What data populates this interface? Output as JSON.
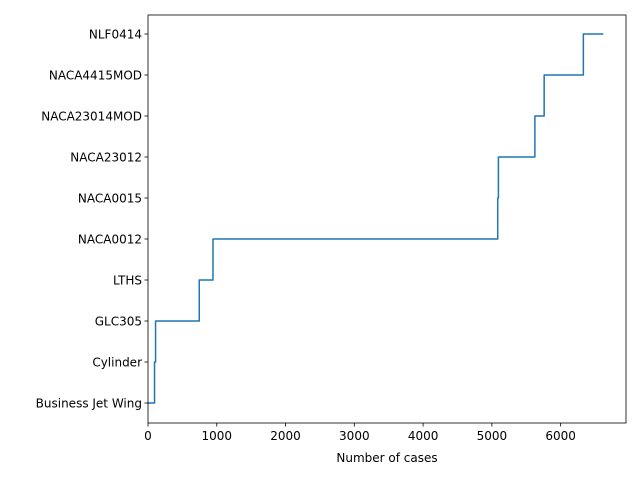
{
  "chart_data": {
    "type": "line",
    "title": "",
    "xlabel": "Number of cases",
    "ylabel": "",
    "xlim": [
      0,
      6950
    ],
    "xticks": [
      0,
      1000,
      2000,
      3000,
      4000,
      5000,
      6000
    ],
    "xtick_labels": [
      "0",
      "1000",
      "2000",
      "3000",
      "4000",
      "5000",
      "6000"
    ],
    "categories": [
      "Business Jet Wing",
      "Cylinder",
      "GLC305",
      "LTHS",
      "NACA0012",
      "NACA0015",
      "NACA23012",
      "NACA23014MOD",
      "NACA4415MOD",
      "NLF0414"
    ],
    "grid": false,
    "legend": "none",
    "series": [
      {
        "color": "#1f77b4",
        "drawstyle": "steps",
        "points": [
          {
            "x": 0,
            "y": "Business Jet Wing"
          },
          {
            "x": 95,
            "y": "Business Jet Wing"
          },
          {
            "x": 95,
            "y": "Cylinder"
          },
          {
            "x": 110,
            "y": "Cylinder"
          },
          {
            "x": 110,
            "y": "GLC305"
          },
          {
            "x": 745,
            "y": "GLC305"
          },
          {
            "x": 745,
            "y": "LTHS"
          },
          {
            "x": 945,
            "y": "LTHS"
          },
          {
            "x": 945,
            "y": "NACA0012"
          },
          {
            "x": 5085,
            "y": "NACA0012"
          },
          {
            "x": 5085,
            "y": "NACA0015"
          },
          {
            "x": 5095,
            "y": "NACA0015"
          },
          {
            "x": 5095,
            "y": "NACA23012"
          },
          {
            "x": 5625,
            "y": "NACA23012"
          },
          {
            "x": 5625,
            "y": "NACA23014MOD"
          },
          {
            "x": 5760,
            "y": "NACA23014MOD"
          },
          {
            "x": 5760,
            "y": "NACA4415MOD"
          },
          {
            "x": 6330,
            "y": "NACA4415MOD"
          },
          {
            "x": 6330,
            "y": "NLF0414"
          },
          {
            "x": 6620,
            "y": "NLF0414"
          }
        ]
      }
    ]
  }
}
